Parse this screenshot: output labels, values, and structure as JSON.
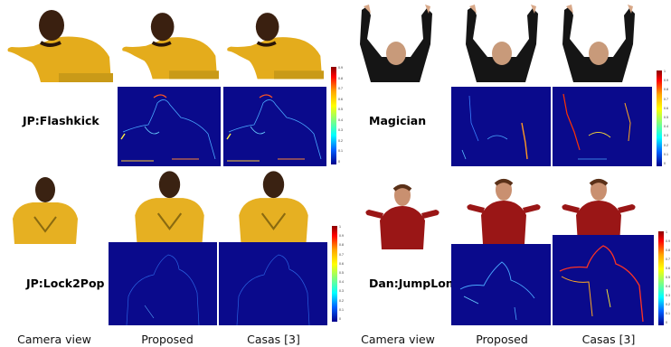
{
  "columns": {
    "left": [
      "Camera view",
      "Proposed",
      "Casas [3]"
    ],
    "right": [
      "Camera view",
      "Proposed",
      "Casas [3]"
    ]
  },
  "sequences": [
    {
      "id": "flashkick",
      "label": "JP:Flashkick"
    },
    {
      "id": "magician",
      "label": "Magician"
    },
    {
      "id": "lock2pop",
      "label": "JP:Lock2Pop"
    },
    {
      "id": "jumplong",
      "label": "Dan:JumpLong"
    }
  ],
  "colorbars": {
    "top_left": [
      "0.9",
      "0.8",
      "0.7",
      "0.6",
      "0.5",
      "0.4",
      "0.3",
      "0.2",
      "0.1",
      "0"
    ],
    "top_right": [
      "1",
      "0.9",
      "0.8",
      "0.7",
      "0.6",
      "0.5",
      "0.4",
      "0.3",
      "0.2",
      "0.1",
      "0"
    ],
    "bottom_left": [
      "1",
      "0.9",
      "0.8",
      "0.7",
      "0.6",
      "0.5",
      "0.4",
      "0.3",
      "0.2",
      "0.1",
      "0"
    ],
    "bottom_right": [
      "1",
      "0.9",
      "0.8",
      "0.7",
      "0.6",
      "0.5",
      "0.4",
      "0.3",
      "0.2",
      "0.1",
      "0"
    ]
  },
  "colors": {
    "map_background": "#0a0a8c",
    "yellow_shirt": "#e8b020",
    "red_shirt": "#a01818",
    "dark_suit": "#1a1a1a"
  }
}
